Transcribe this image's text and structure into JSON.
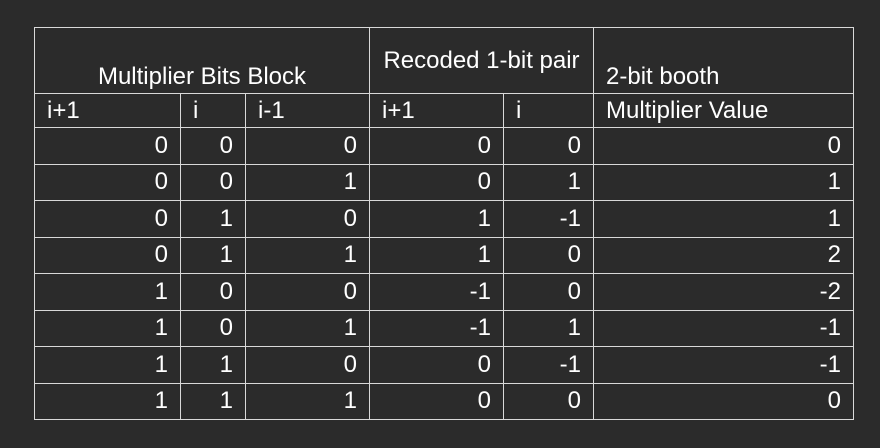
{
  "table": {
    "group_headers": {
      "multiplier_bits_block": "Multiplier Bits Block",
      "recoded_pair": "Recoded 1-bit pair",
      "booth_label": "2-bit booth"
    },
    "column_headers": [
      "i+1",
      "i",
      "i-1",
      "i+1",
      "i",
      "Multiplier Value"
    ],
    "rows": [
      [
        "0",
        "0",
        "0",
        "0",
        "0",
        "0"
      ],
      [
        "0",
        "0",
        "1",
        "0",
        "1",
        "1"
      ],
      [
        "0",
        "1",
        "0",
        "1",
        "-1",
        "1"
      ],
      [
        "0",
        "1",
        "1",
        "1",
        "0",
        "2"
      ],
      [
        "1",
        "0",
        "0",
        "-1",
        "0",
        "-2"
      ],
      [
        "1",
        "0",
        "1",
        "-1",
        "1",
        "-1"
      ],
      [
        "1",
        "1",
        "0",
        "0",
        "-1",
        "-1"
      ],
      [
        "1",
        "1",
        "1",
        "0",
        "0",
        "0"
      ]
    ]
  }
}
